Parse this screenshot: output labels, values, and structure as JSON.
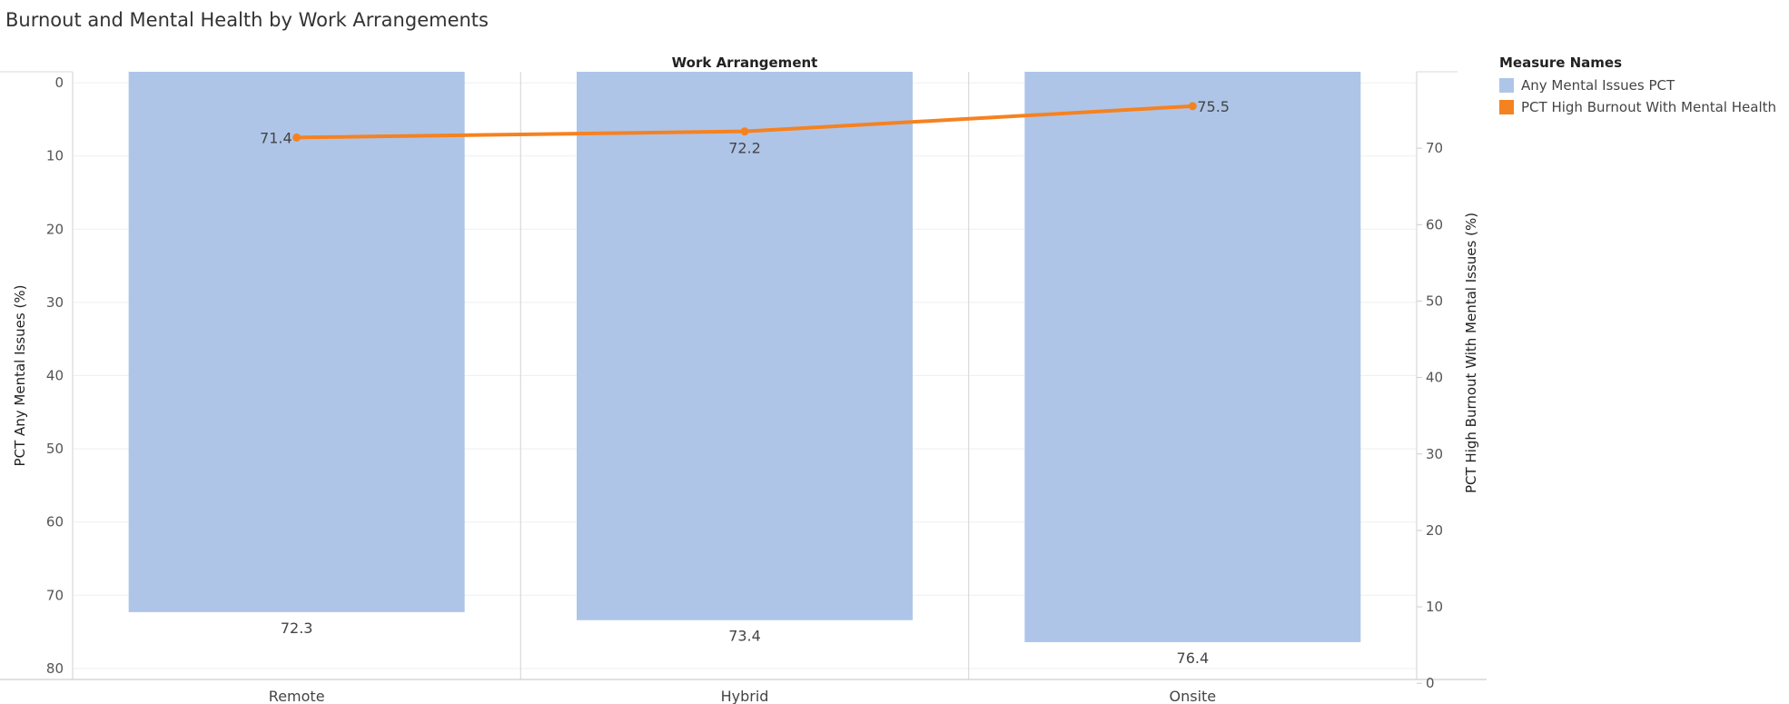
{
  "page": {
    "title": "Burnout and Mental Health by Work Arrangements"
  },
  "legend": {
    "title": "Measure Names",
    "items": [
      {
        "label": "Any Mental Issues PCT",
        "color": "#aec5e8"
      },
      {
        "label": "PCT High Burnout With Mental Health",
        "color": "#f58220"
      }
    ]
  },
  "chart_data": {
    "type": "bar",
    "column_header": "Work Arrangement",
    "categories": [
      "Remote",
      "Hybrid",
      "Onsite"
    ],
    "series": [
      {
        "name": "Any Mental Issues PCT",
        "type": "bar",
        "axis": "left",
        "values": [
          72.3,
          73.4,
          76.4
        ],
        "data_labels": [
          "72.3",
          "73.4",
          "76.4"
        ],
        "color": "#aec5e8"
      },
      {
        "name": "PCT High Burnout With Mental Health",
        "type": "line",
        "axis": "right",
        "values": [
          71.4,
          72.2,
          75.5
        ],
        "data_labels": [
          "71.4",
          "72.2",
          "75.5"
        ],
        "color": "#f58220"
      }
    ],
    "y_left": {
      "label": "PCT Any Mental Issues (%)",
      "range": [
        -1.5,
        81.5
      ],
      "reversed": true,
      "ticks": [
        0,
        10,
        20,
        30,
        40,
        50,
        60,
        70,
        80
      ],
      "tick_labels": [
        "0",
        "10",
        "20",
        "30",
        "40",
        "50",
        "60",
        "70",
        "80"
      ]
    },
    "y_right": {
      "label": "PCT High Burnout With Mental Issues (%)",
      "range": [
        0.5,
        80
      ],
      "ticks": [
        0,
        10,
        20,
        30,
        40,
        50,
        60,
        70
      ],
      "tick_labels": [
        "0",
        "10",
        "20",
        "30",
        "40",
        "50",
        "60",
        "70"
      ]
    },
    "grid": true,
    "legend_position": "right"
  }
}
